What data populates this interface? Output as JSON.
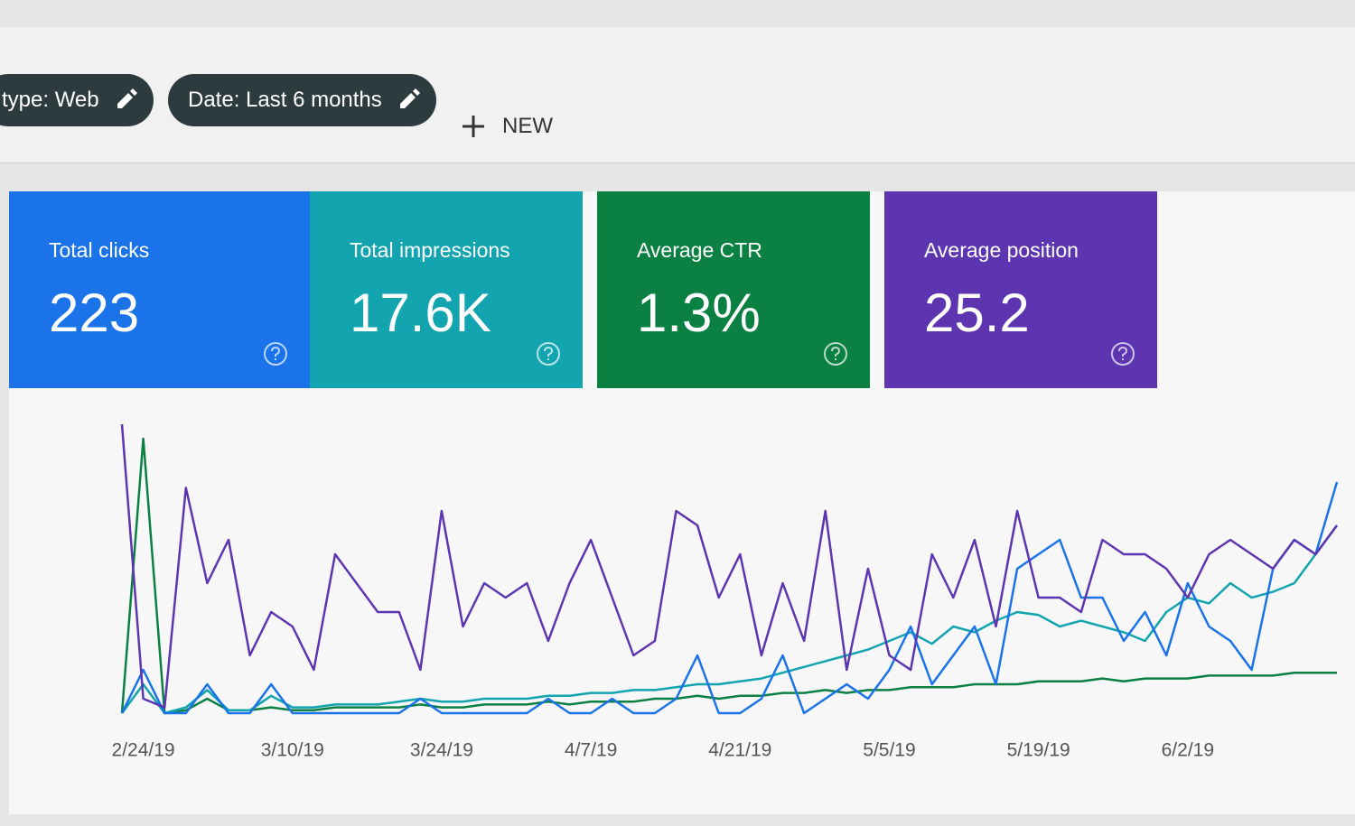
{
  "filters": {
    "chips": [
      "type: Web",
      "Date: Last 6 months"
    ],
    "new_button": "NEW"
  },
  "metrics": [
    {
      "label": "Total clicks",
      "value": "223",
      "color": "#1a73e8"
    },
    {
      "label": "Total impressions",
      "value": "17.6K",
      "color": "#12a4af"
    },
    {
      "label": "Average CTR",
      "value": "1.3%",
      "color": "#0b8043"
    },
    {
      "label": "Average position",
      "value": "25.2",
      "color": "#5e35b1"
    }
  ],
  "chart_data": {
    "type": "line",
    "categories": [
      null,
      "2/24/19",
      null,
      null,
      null,
      null,
      null,
      null,
      "3/10/19",
      null,
      null,
      null,
      null,
      null,
      null,
      "3/24/19",
      null,
      null,
      null,
      null,
      null,
      null,
      "4/7/19",
      null,
      null,
      null,
      null,
      null,
      null,
      "4/21/19",
      null,
      null,
      null,
      null,
      null,
      null,
      "5/5/19",
      null,
      null,
      null,
      null,
      null,
      null,
      "5/19/19",
      null,
      null,
      null,
      null,
      null,
      null,
      "6/2/19",
      null,
      null,
      null,
      null,
      null,
      null,
      null
    ],
    "ylim": [
      0,
      100
    ],
    "series": [
      {
        "color": "#0b8043",
        "values": [
          0,
          95,
          0,
          1,
          5,
          1,
          1,
          2,
          1,
          1,
          2,
          2,
          2,
          2,
          3,
          2,
          2,
          3,
          3,
          3,
          4,
          3,
          4,
          4,
          4,
          5,
          5,
          6,
          5,
          6,
          6,
          7,
          7,
          8,
          7,
          8,
          8,
          9,
          9,
          9,
          10,
          10,
          10,
          11,
          11,
          11,
          12,
          11,
          12,
          12,
          12,
          13,
          13,
          13,
          13,
          14,
          14,
          14
        ]
      },
      {
        "color": "#12a4af",
        "values": [
          0,
          10,
          0,
          2,
          8,
          1,
          1,
          6,
          2,
          2,
          3,
          3,
          3,
          4,
          5,
          4,
          4,
          5,
          5,
          5,
          6,
          6,
          7,
          7,
          8,
          8,
          9,
          10,
          10,
          11,
          12,
          14,
          16,
          18,
          20,
          22,
          25,
          28,
          24,
          30,
          28,
          32,
          35,
          34,
          30,
          32,
          30,
          28,
          25,
          35,
          40,
          38,
          45,
          40,
          42,
          45,
          55,
          65
        ]
      },
      {
        "color": "#1a73e8",
        "values": [
          0,
          15,
          0,
          0,
          10,
          0,
          0,
          10,
          0,
          0,
          0,
          0,
          0,
          0,
          5,
          0,
          0,
          0,
          0,
          0,
          5,
          0,
          0,
          5,
          0,
          0,
          5,
          20,
          0,
          0,
          5,
          20,
          0,
          5,
          10,
          5,
          15,
          30,
          10,
          20,
          30,
          10,
          50,
          55,
          60,
          40,
          40,
          25,
          35,
          20,
          45,
          30,
          25,
          15,
          50,
          60,
          55,
          80
        ]
      },
      {
        "color": "#5e35b1",
        "values": [
          100,
          5,
          2,
          78,
          45,
          60,
          20,
          35,
          30,
          15,
          55,
          45,
          35,
          35,
          15,
          70,
          30,
          45,
          40,
          45,
          25,
          45,
          60,
          40,
          20,
          25,
          70,
          65,
          40,
          55,
          20,
          45,
          25,
          70,
          15,
          50,
          20,
          15,
          55,
          40,
          60,
          30,
          70,
          40,
          40,
          35,
          60,
          55,
          55,
          50,
          40,
          55,
          60,
          55,
          50,
          60,
          55,
          65
        ]
      }
    ]
  }
}
